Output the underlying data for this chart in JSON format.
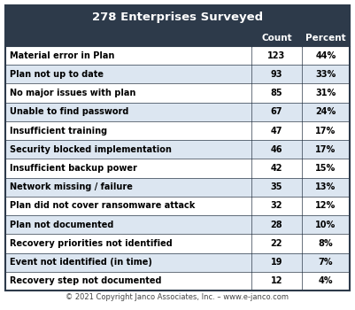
{
  "title": "278 Enterprises Surveyed",
  "col_headers": [
    "",
    "Count",
    "Percent"
  ],
  "rows": [
    [
      "Material error in Plan",
      "123",
      "44%"
    ],
    [
      "Plan not up to date",
      "93",
      "33%"
    ],
    [
      "No major issues with plan",
      "85",
      "31%"
    ],
    [
      "Unable to find password",
      "67",
      "24%"
    ],
    [
      "Insufficient training",
      "47",
      "17%"
    ],
    [
      "Security blocked implementation",
      "46",
      "17%"
    ],
    [
      "Insufficient backup power",
      "42",
      "15%"
    ],
    [
      "Network missing / failure",
      "35",
      "13%"
    ],
    [
      "Plan did not cover ransomware attack",
      "32",
      "12%"
    ],
    [
      "Plan not documented",
      "28",
      "10%"
    ],
    [
      "Recovery priorities not identified",
      "22",
      "8%"
    ],
    [
      "Event not identified (in time)",
      "19",
      "7%"
    ],
    [
      "Recovery step not documented",
      "12",
      "4%"
    ]
  ],
  "footer": "© 2021 Copyright Janco Associates, Inc. – www.e-janco.com",
  "header_bg": "#2d3a4a",
  "header_text": "#ffffff",
  "row_bg_even": "#ffffff",
  "row_bg_odd": "#dce6f1",
  "border_color": "#2d3a4a",
  "text_color": "#000000",
  "title_fontsize": 9.5,
  "header_fontsize": 7.5,
  "row_fontsize": 7.0,
  "footer_fontsize": 6.0
}
